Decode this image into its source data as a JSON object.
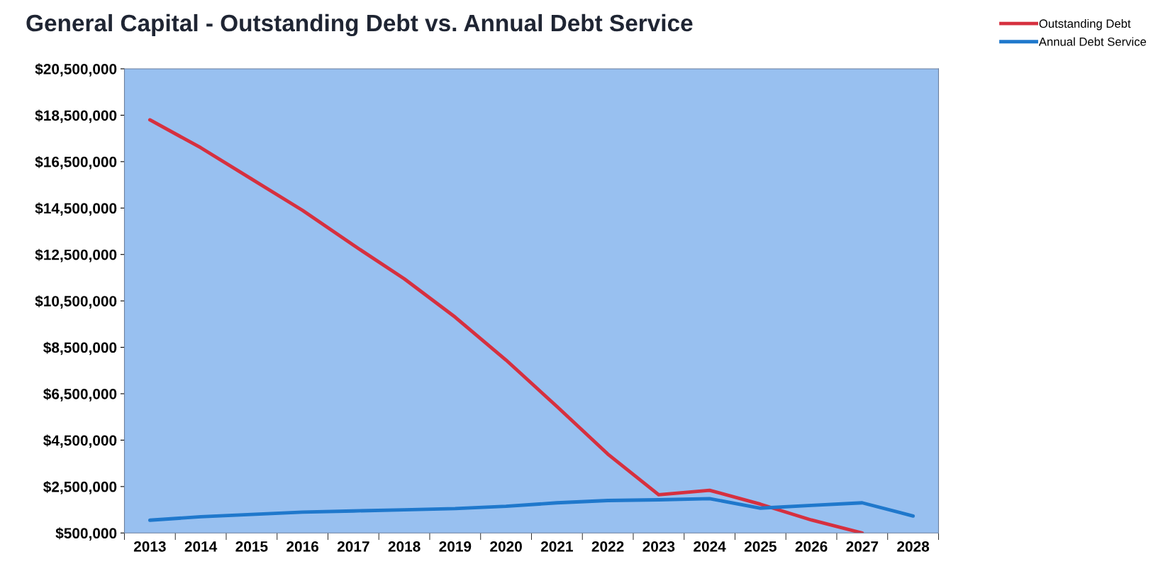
{
  "chart_data": {
    "type": "line",
    "title": "General Capital - Outstanding Debt vs. Annual Debt Service",
    "categories": [
      "2013",
      "2014",
      "2015",
      "2016",
      "2017",
      "2018",
      "2019",
      "2020",
      "2021",
      "2022",
      "2023",
      "2024",
      "2025",
      "2026",
      "2027",
      "2028"
    ],
    "series": [
      {
        "name": "Outstanding Debt",
        "color": "#d6303f",
        "values": [
          18300000,
          17100000,
          15750000,
          14400000,
          12900000,
          11450000,
          9800000,
          7950000,
          5950000,
          3900000,
          2150000,
          2340000,
          1740000,
          1060000,
          500000,
          null
        ]
      },
      {
        "name": "Annual Debt Service",
        "color": "#1f78cc",
        "values": [
          1050000,
          1200000,
          1300000,
          1400000,
          1450000,
          1500000,
          1550000,
          1650000,
          1800000,
          1900000,
          1930000,
          1980000,
          1570000,
          1690000,
          1800000,
          1230000
        ]
      }
    ],
    "ylim": [
      500000,
      20500000
    ],
    "yticks": [
      {
        "value": 500000,
        "label": "$500,000"
      },
      {
        "value": 2500000,
        "label": "$2,500,000"
      },
      {
        "value": 4500000,
        "label": "$4,500,000"
      },
      {
        "value": 6500000,
        "label": "$6,500,000"
      },
      {
        "value": 8500000,
        "label": "$8,500,000"
      },
      {
        "value": 10500000,
        "label": "$10,500,000"
      },
      {
        "value": 12500000,
        "label": "$12,500,000"
      },
      {
        "value": 14500000,
        "label": "$14,500,000"
      },
      {
        "value": 16500000,
        "label": "$16,500,000"
      },
      {
        "value": 18500000,
        "label": "$18,500,000"
      },
      {
        "value": 20500000,
        "label": "$20,500,000"
      }
    ],
    "grid": false,
    "legend": "top right",
    "marker": "none",
    "line_style": "solid"
  }
}
